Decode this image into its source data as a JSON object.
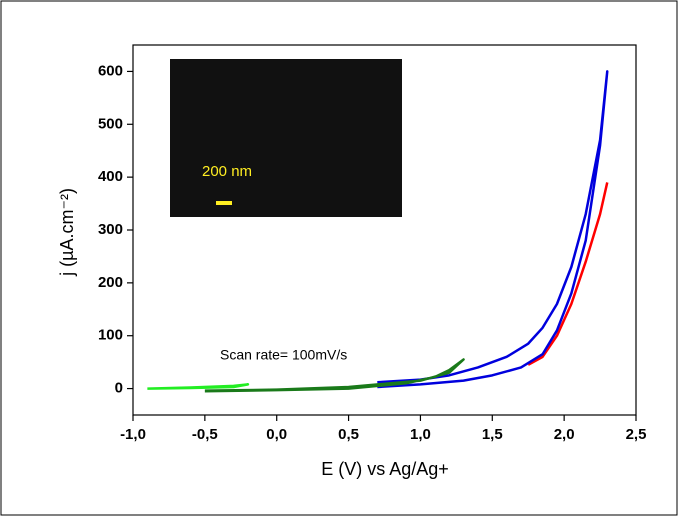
{
  "chart_data": {
    "type": "line",
    "xlabel": "E (V) vs Ag/Ag+",
    "ylabel": "j (µA.cm⁻²)",
    "annotation": "Scan rate= 100mV/s",
    "inset_scale_label": "200 nm",
    "xlim": [
      -1.0,
      2.5
    ],
    "ylim": [
      -50,
      650
    ],
    "xticks": [
      {
        "value": -1.0,
        "label": "-1,0"
      },
      {
        "value": -0.5,
        "label": "-0,5"
      },
      {
        "value": 0.0,
        "label": "0,0"
      },
      {
        "value": 0.5,
        "label": "0,5"
      },
      {
        "value": 1.0,
        "label": "1,0"
      },
      {
        "value": 1.5,
        "label": "1,5"
      },
      {
        "value": 2.0,
        "label": "2,0"
      },
      {
        "value": 2.5,
        "label": "2,5"
      }
    ],
    "yticks": [
      0,
      100,
      200,
      300,
      400,
      500,
      600
    ],
    "series": [
      {
        "color": "#ff0000",
        "x": [
          1.75,
          1.85,
          1.95,
          2.05,
          2.15,
          2.25,
          2.3
        ],
        "values": [
          45,
          60,
          100,
          160,
          240,
          330,
          390
        ]
      },
      {
        "color": "#0000dd",
        "x": [
          0.7,
          1.0,
          1.3,
          1.5,
          1.7,
          1.85,
          1.95,
          2.05,
          2.15,
          2.25,
          2.3,
          2.25,
          2.15,
          2.05,
          1.95,
          1.85,
          1.75,
          1.6,
          1.4,
          1.2,
          1.0,
          0.7
        ],
        "values": [
          3,
          8,
          15,
          25,
          40,
          65,
          110,
          180,
          280,
          460,
          600,
          470,
          330,
          230,
          160,
          115,
          85,
          60,
          40,
          25,
          17,
          12
        ]
      },
      {
        "color": "#1a7a1a",
        "x": [
          -0.5,
          0.0,
          0.5,
          0.9,
          1.1,
          1.2,
          1.3,
          1.2,
          1.0,
          0.5,
          0.0,
          -0.5
        ],
        "values": [
          -5,
          -3,
          0,
          10,
          22,
          35,
          55,
          30,
          15,
          3,
          -2,
          -4
        ]
      },
      {
        "color": "#22ee22",
        "x": [
          -0.9,
          -0.6,
          -0.3,
          -0.2,
          -0.3,
          -0.6,
          -0.9
        ],
        "values": [
          0,
          2,
          5,
          8,
          3,
          1,
          0
        ]
      }
    ]
  }
}
